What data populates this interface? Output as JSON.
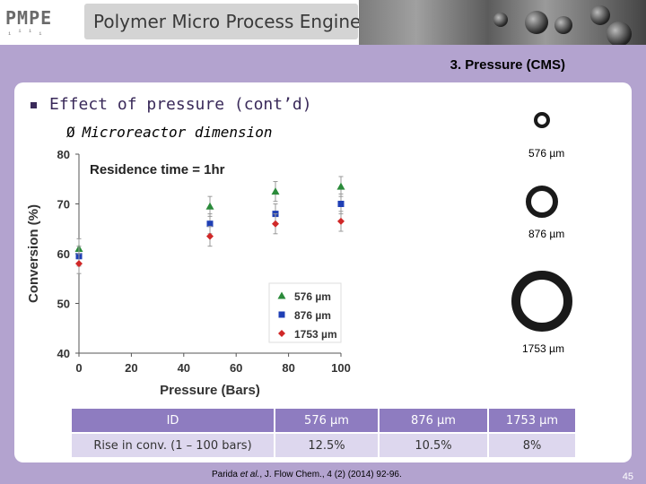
{
  "header": {
    "logo_text": "PMPE",
    "logo_sub": "ᵢⁱⁱᵢ",
    "title": "Polymer Micro Process Engineering"
  },
  "section_label": "3. Pressure (CMS)",
  "bullets": {
    "level1": "Effect of pressure (cont’d)",
    "level2": "Microreactor dimension",
    "level2_marker": "Ø"
  },
  "chart_data": {
    "type": "scatter",
    "title": "Residence time = 1hr",
    "xlabel": "Pressure (Bars)",
    "ylabel": "Conversion (%)",
    "xlim": [
      0,
      100
    ],
    "ylim": [
      40,
      80
    ],
    "xticks": [
      "0",
      "20",
      "40",
      "60",
      "80",
      "100"
    ],
    "yticks": [
      "40",
      "50",
      "60",
      "70",
      "80"
    ],
    "legend_position": "bottom-right",
    "series": [
      {
        "name": "576 µm",
        "marker": "triangle",
        "color": "#2a8a3a",
        "x": [
          0,
          50,
          75,
          100
        ],
        "y": [
          61,
          69.5,
          72.5,
          73.5
        ],
        "err": [
          2,
          2,
          2,
          2
        ]
      },
      {
        "name": "876 µm",
        "marker": "square",
        "color": "#1f3fb5",
        "x": [
          0,
          50,
          75,
          100
        ],
        "y": [
          59.5,
          66,
          68,
          70
        ],
        "err": [
          2,
          2,
          2,
          2
        ]
      },
      {
        "name": "1753 µm",
        "marker": "diamond",
        "color": "#d02828",
        "x": [
          0,
          50,
          75,
          100
        ],
        "y": [
          58,
          63.5,
          66,
          66.5
        ],
        "err": [
          2,
          2,
          2,
          2
        ]
      }
    ]
  },
  "rings": [
    {
      "label": "576 µm"
    },
    {
      "label": "876 µm"
    },
    {
      "label": "1753 µm"
    }
  ],
  "table": {
    "headers": [
      "ID",
      "576 µm",
      "876 µm",
      "1753 µm"
    ],
    "rows": [
      [
        "Rise in conv. (1 – 100 bars)",
        "12.5%",
        "10.5%",
        "8%"
      ]
    ]
  },
  "citation": {
    "pre": "Parida ",
    "etal": "et al.",
    "post": ", J. Flow Chem., 4 (2) (2014) 92-96."
  },
  "page_number": "45"
}
